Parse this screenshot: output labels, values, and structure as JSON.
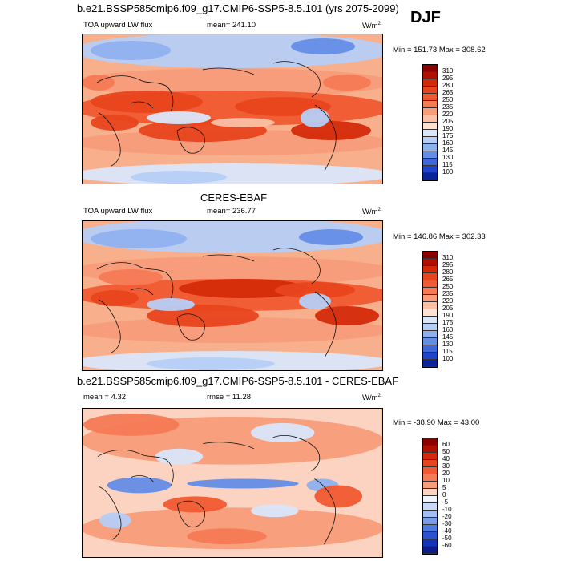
{
  "header": {
    "title": "b.e21.BSSP585cmip6.f09_g17.CMIP6-SSP5-8.5.101 (yrs 2075-2099)",
    "season": "DJF"
  },
  "panels": [
    {
      "variable": "TOA upward LW flux",
      "stat_text": "mean= 241.10",
      "unit": "W/m",
      "unit_sup": "2",
      "minmax": "Min = 151.73 Max = 308.62",
      "colorbar": {
        "labels": [
          "310",
          "295",
          "280",
          "265",
          "250",
          "235",
          "220",
          "205",
          "190",
          "175",
          "160",
          "145",
          "130",
          "115",
          "100"
        ],
        "colors": [
          "#8a0000",
          "#b01000",
          "#d42a0a",
          "#e8441e",
          "#f05a32",
          "#f57a55",
          "#f89c7a",
          "#fbc0a5",
          "#fde2d2",
          "#d9e6fa",
          "#b6cdf5",
          "#8fb0ef",
          "#648de6",
          "#3f68db",
          "#1f43c9",
          "#0a229a"
        ]
      }
    },
    {
      "title": "CERES-EBAF",
      "variable": "TOA upward LW flux",
      "stat_text": "mean= 236.77",
      "unit": "W/m",
      "unit_sup": "2",
      "minmax": "Min = 146.86 Max = 302.33",
      "colorbar": {
        "labels": [
          "310",
          "295",
          "280",
          "265",
          "250",
          "235",
          "220",
          "205",
          "190",
          "175",
          "160",
          "145",
          "130",
          "115",
          "100"
        ],
        "colors": [
          "#8a0000",
          "#b01000",
          "#d42a0a",
          "#e8441e",
          "#f05a32",
          "#f57a55",
          "#f89c7a",
          "#fbc0a5",
          "#fde2d2",
          "#d9e6fa",
          "#b6cdf5",
          "#8fb0ef",
          "#648de6",
          "#3f68db",
          "#1f43c9",
          "#0a229a"
        ]
      }
    },
    {
      "title": "b.e21.BSSP585cmip6.f09_g17.CMIP6-SSP5-8.5.101 - CERES-EBAF",
      "stat_text": "mean =   4.32",
      "rmse_text": "rmse =  11.28",
      "unit": "W/m",
      "unit_sup": "2",
      "minmax": "Min = -38.90 Max =  43.00",
      "colorbar": {
        "labels": [
          "60",
          "50",
          "40",
          "30",
          "20",
          "10",
          "5",
          "0",
          "-5",
          "-10",
          "-20",
          "-30",
          "-40",
          "-50",
          "-60"
        ],
        "colors": [
          "#8a0000",
          "#b01000",
          "#d42a0a",
          "#e8441e",
          "#f05a32",
          "#f57a55",
          "#f89c7a",
          "#fbd3c0",
          "#eef2fb",
          "#c9d8f7",
          "#a2bdf2",
          "#7a9ceb",
          "#4f78e0",
          "#2c52d2",
          "#1433bb",
          "#0a1d8f"
        ]
      }
    }
  ]
}
